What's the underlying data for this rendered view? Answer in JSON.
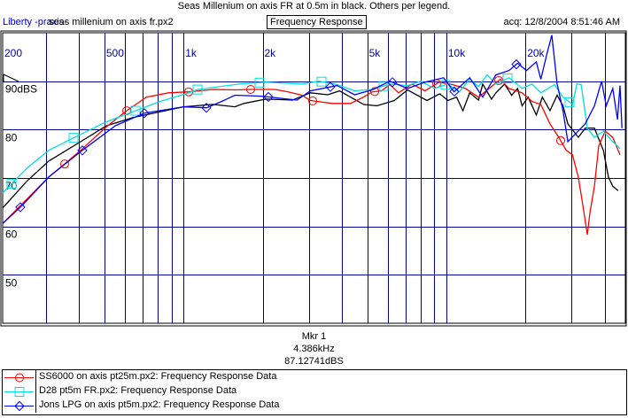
{
  "header": {
    "title": "Seas Millenium on axis FR at 0.5m in black. Others per legend.",
    "app_name": "Liberty -praxis-",
    "file_name": "seas millenium on axis fr.px2",
    "view_label": "Frequency Response",
    "acquired": "acq: 12/8/2004 8:51:46 AM"
  },
  "marker": {
    "name": "Mkr 1",
    "frequency": "4.386kHz",
    "level": "87.12741dBS"
  },
  "colors": {
    "grid": "#000090",
    "tick_text": "#0000b0",
    "red": "#ff0000",
    "cyan": "#00e0e0",
    "blue": "#0000ff",
    "black": "#000000"
  },
  "chart_data": {
    "type": "line",
    "xscale": "log",
    "xlim": [
      205,
      48000
    ],
    "ylim": [
      40,
      100
    ],
    "grid": true,
    "x_gridlines": [
      300,
      400,
      500,
      600,
      700,
      800,
      900,
      1000,
      2000,
      3000,
      4000,
      5000,
      6000,
      7000,
      8000,
      9000,
      10000,
      20000,
      30000,
      40000
    ],
    "y_gridlines": [
      50,
      60,
      70,
      80,
      90
    ],
    "x_tick_labels": [
      {
        "v": 205,
        "t": "200"
      },
      {
        "v": 500,
        "t": "500"
      },
      {
        "v": 1000,
        "t": "1k"
      },
      {
        "v": 2000,
        "t": "2k"
      },
      {
        "v": 5000,
        "t": "5k"
      },
      {
        "v": 10000,
        "t": "10k"
      },
      {
        "v": 20000,
        "t": "20k"
      }
    ],
    "y_tick_labels": [
      {
        "v": 90,
        "t": "90dBS"
      },
      {
        "v": 80,
        "t": "80"
      },
      {
        "v": 70,
        "t": "70"
      },
      {
        "v": 60,
        "t": "60"
      },
      {
        "v": 50,
        "t": "50"
      }
    ],
    "legend_position": "bottom",
    "series": [
      {
        "name": "Seas Millenium on axis fr.px2",
        "color": "#000000",
        "marker": "none",
        "x": [
          205,
          253,
          307,
          406,
          509,
          642,
          1000,
          1292,
          1568,
          1696,
          2060,
          2600,
          3040,
          3540,
          3920,
          4840,
          5440,
          6340,
          7120,
          8440,
          9440,
          10140,
          10940,
          11560,
          12280,
          13260,
          13760,
          14860,
          15440,
          16660,
          17720,
          18680,
          19420,
          20480,
          22000,
          23200,
          24800,
          26400,
          27800,
          29000,
          31800,
          33800,
          36600,
          39600,
          41400,
          43000,
          45000
        ],
        "y": [
          63.8,
          69.3,
          73.5,
          77.5,
          80.8,
          82.5,
          84.7,
          85.2,
          84.7,
          85.4,
          86.3,
          86.1,
          87.6,
          87.2,
          88.0,
          85.2,
          84.9,
          86.0,
          88.2,
          86.0,
          87.4,
          86.0,
          86.7,
          83.9,
          87.6,
          86.1,
          89.4,
          86.3,
          87.6,
          89.4,
          87.1,
          88.5,
          84.9,
          86.7,
          83.0,
          86.7,
          83.9,
          87.1,
          84.9,
          81.2,
          78.4,
          80.3,
          80.3,
          75.7,
          70.2,
          68.3,
          67.4
        ]
      },
      {
        "name": "SS6000 on axis pt25m.px2:  Frequency Response Data",
        "color": "#ff0000",
        "marker": "circle",
        "x": [
          205,
          253,
          307,
          353,
          406,
          509,
          608,
          722,
          877,
          1048,
          1292,
          1568,
          1808,
          2230,
          2500,
          2820,
          3040,
          3680,
          4320,
          4840,
          5220,
          5660,
          6100,
          6580,
          7400,
          8300,
          9380,
          10540,
          11820,
          13260,
          14860,
          16040,
          17320,
          19420,
          21200,
          22900,
          24800,
          26800,
          28600,
          30200,
          31800,
          33200,
          34400,
          35200,
          36600,
          38000,
          40200,
          43000,
          45800
        ],
        "y": [
          60.6,
          65.6,
          70.2,
          72.9,
          75.7,
          80.6,
          83.9,
          86.7,
          87.6,
          87.8,
          88.3,
          88.2,
          88.3,
          88.3,
          87.8,
          87.1,
          86.0,
          85.4,
          85.4,
          86.7,
          87.8,
          88.0,
          89.3,
          87.6,
          89.4,
          88.0,
          89.8,
          89.3,
          88.5,
          86.7,
          88.9,
          90.4,
          88.5,
          87.6,
          85.8,
          85.2,
          81.2,
          78.4,
          75.7,
          74.8,
          70.2,
          63.8,
          58.3,
          62.8,
          68.3,
          76.6,
          79.7,
          78.4,
          74.8
        ]
      },
      {
        "name": "D28 pt5m FR.px2:  Frequency Response Data",
        "color": "#00e0e0",
        "marker": "square",
        "x": [
          205,
          253,
          307,
          385,
          509,
          657,
          812,
          1024,
          1134,
          1632,
          2060,
          2820,
          3280,
          3840,
          4480,
          5220,
          6100,
          7120,
          8000,
          9020,
          10140,
          11200,
          12280,
          13260,
          14300,
          15440,
          17320,
          19420,
          21200,
          22900,
          25800,
          27800,
          30200,
          31400,
          32600,
          34400,
          36600,
          39600,
          43000,
          45800
        ],
        "y": [
          66.9,
          72.0,
          75.7,
          78.4,
          81.6,
          83.9,
          85.8,
          87.4,
          88.3,
          89.4,
          89.8,
          89.4,
          90.0,
          89.3,
          88.0,
          88.3,
          89.4,
          89.1,
          90.0,
          88.5,
          89.4,
          87.8,
          90.4,
          88.9,
          91.3,
          89.4,
          90.7,
          88.5,
          89.4,
          87.6,
          89.3,
          86.7,
          85.2,
          89.4,
          89.3,
          80.3,
          78.4,
          79.7,
          77.5,
          76.1
        ]
      },
      {
        "name": "Jons LPG on axis pt5m.px2:  Frequency Response Data",
        "color": "#0000ff",
        "marker": "diamond",
        "x": [
          205,
          243,
          307,
          412,
          550,
          710,
          1000,
          1224,
          1396,
          1568,
          1980,
          2700,
          3040,
          3840,
          4480,
          5220,
          6100,
          7120,
          8300,
          9760,
          10700,
          12280,
          13760,
          15440,
          17320,
          18680,
          20180,
          22000,
          22900,
          24200,
          25200,
          26400,
          27800,
          29000,
          31400,
          33800,
          36600,
          39000,
          40600,
          43000,
          44800,
          45800,
          46600
        ],
        "y": [
          60.6,
          64.3,
          70.2,
          75.7,
          80.8,
          83.4,
          84.7,
          84.5,
          85.8,
          87.1,
          86.9,
          86.1,
          88.0,
          89.1,
          87.2,
          88.2,
          90.0,
          88.5,
          89.8,
          90.7,
          87.8,
          90.7,
          86.7,
          91.3,
          92.2,
          93.7,
          92.2,
          94.0,
          90.4,
          95.9,
          99.5,
          89.4,
          83.9,
          77.5,
          79.4,
          81.2,
          84.9,
          90.0,
          84.9,
          88.5,
          82.1,
          89.1,
          80.3
        ]
      }
    ]
  }
}
